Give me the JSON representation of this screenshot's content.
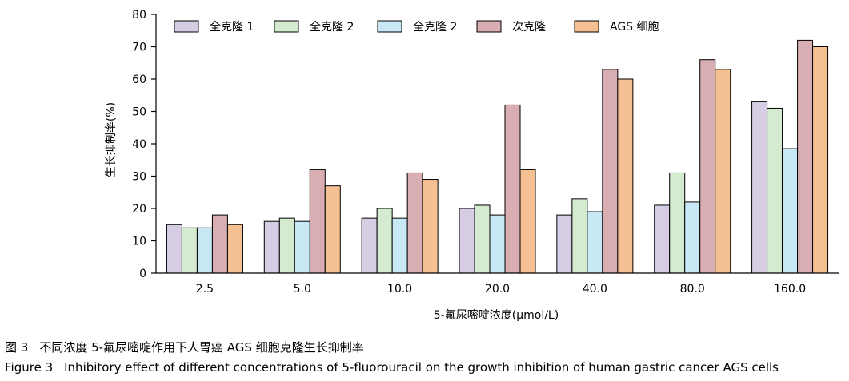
{
  "chart_data": {
    "type": "bar",
    "xlabel": "5-氟尿嘧啶浓度(μmol/L)",
    "ylabel": "生长抑制率(%)",
    "ylim": [
      0,
      80
    ],
    "yticks": [
      0,
      10,
      20,
      30,
      40,
      50,
      60,
      70,
      80
    ],
    "grid": false,
    "legend_position": "top",
    "categories": [
      "2.5",
      "5.0",
      "10.0",
      "20.0",
      "40.0",
      "80.0",
      "160.0"
    ],
    "series": [
      {
        "name": "全克隆 1",
        "color": "#d6cde5",
        "values": [
          15,
          16,
          17,
          20,
          18,
          21,
          53
        ]
      },
      {
        "name": "全克隆 2",
        "color": "#d4ebd0",
        "values": [
          14,
          17,
          20,
          21,
          23,
          31,
          51
        ]
      },
      {
        "name": "全克隆 2",
        "color": "#c9e8f6",
        "values": [
          14,
          16,
          17,
          18,
          19,
          22,
          38.5
        ]
      },
      {
        "name": "次克隆",
        "color": "#d8aeb2",
        "values": [
          18,
          32,
          31,
          52,
          63,
          66,
          72
        ]
      },
      {
        "name": "AGS 细胞",
        "color": "#f5c192",
        "values": [
          15,
          27,
          29,
          32,
          60,
          63,
          70
        ]
      }
    ]
  },
  "caption": {
    "cn_num": "图 3",
    "cn_text": "不同浓度 5-氟尿嘧啶作用下人胃癌 AGS 细胞克隆生长抑制率",
    "en_num": "Figure 3",
    "en_text": "Inhibitory effect of different concentrations of 5-fluorouracil on the growth inhibition of human gastric cancer AGS cells"
  }
}
